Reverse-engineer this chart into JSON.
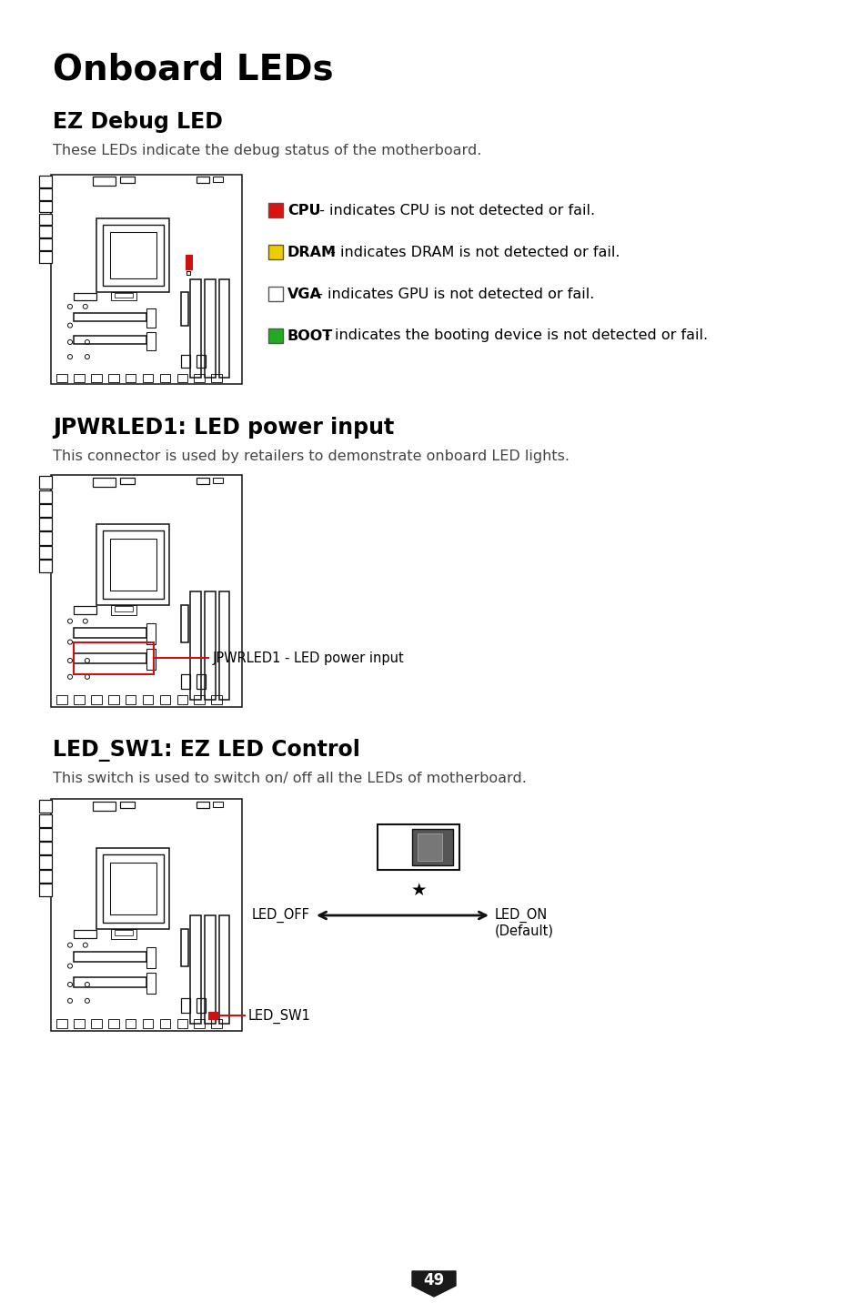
{
  "bg_color": "#ffffff",
  "text_color": "#000000",
  "board_color": "#111111",
  "red_color": "#cc1111",
  "title": "Onboard LEDs",
  "title_fontsize": 28,
  "s1_title": "EZ Debug LED",
  "s1_desc": "These LEDs indicate the debug status of the motherboard.",
  "s2_title": "JPWRLED1: LED power input",
  "s2_desc": "This connector is used by retailers to demonstrate onboard LED lights.",
  "s3_title": "LED_SW1: EZ LED Control",
  "s3_desc": "This switch is used to switch on/ off all the LEDs of motherboard.",
  "section_title_fontsize": 17,
  "desc_fontsize": 11.5,
  "led_items": [
    {
      "color": "#dd1111",
      "bold_label": "CPU",
      "desc": " - indicates CPU is not detected or fail."
    },
    {
      "color": "#eecc00",
      "bold_label": "DRAM",
      "desc": " - indicates DRAM is not detected or fail."
    },
    {
      "color": "#ffffff",
      "bold_label": "VGA",
      "desc": " - indicates GPU is not detected or fail."
    },
    {
      "color": "#22aa22",
      "bold_label": "BOOT",
      "desc": " - indicates the booting device is not detected or fail."
    }
  ],
  "jpwrled_label": "JPWRLED1 - LED power input",
  "ledsw_label": "LED_SW1",
  "led_off_label": "LED_OFF",
  "led_on_label": "LED_ON",
  "led_default_label": "(Default)",
  "page_num": "49"
}
